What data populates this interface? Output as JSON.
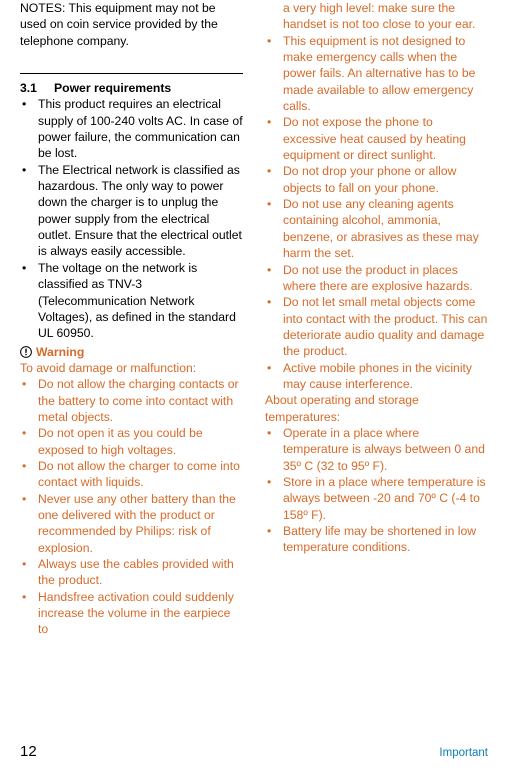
{
  "colors": {
    "warning": "#d66b2a",
    "footer_link": "#0a7fb5",
    "text": "#000000",
    "background": "#ffffff"
  },
  "left": {
    "notes": "NOTES: This equipment may not be used on coin service provided by the telephone company.",
    "section_number": "3.1",
    "section_title": "Power requirements",
    "power_items": [
      "This product requires an electrical supply of 100-240 volts AC. In case of power failure, the communication can be lost.",
      "The Electrical network is classified as hazardous. The only way to power down the charger is to unplug the power supply from the electrical outlet. Ensure that the electrical outlet is always easily accessible.",
      "The voltage on the network is classified as TNV-3 (Telecommunication Network Voltages), as defined in the standard UL 60950."
    ],
    "warning_label": "Warning",
    "warning_intro": "To avoid damage or malfunction:",
    "warning_items": [
      "Do not allow the charging contacts or the battery to come into contact with metal objects.",
      "Do not open it as you could be exposed to high voltages.",
      "Do not allow the charger to come into contact with liquids.",
      "Never use any other battery than the one delivered with the product or recommended by Philips: risk of explosion.",
      "Always use the cables provided with the product.",
      "Handsfree activation could suddenly increase the volume in the earpiece to"
    ]
  },
  "right": {
    "warning_items": [
      "a very high level: make sure the handset is not too close to your ear.",
      "This equipment is not designed to make emergency calls when the power fails. An alternative has to be made available to allow emergency calls.",
      "Do not expose the phone to excessive heat caused by heating equipment or direct sunlight.",
      "Do not drop your phone or allow objects to fall on your phone.",
      "Do not use any cleaning agents containing alcohol, ammonia, benzene, or abrasives as these may harm the set.",
      "Do not use the product in places where there are explosive hazards.",
      "Do not let small metal objects come into contact with the product. This can deteriorate audio quality and damage the product.",
      "Active mobile phones in the vicinity may cause interference."
    ],
    "storage_intro": "About operating and storage temperatures:",
    "storage_items": [
      "Operate in a place where temperature is always between 0 and 35º C (32 to 95º F).",
      "Store in a place where temperature is always between -20 and 70º C (-4 to 158º F).",
      "Battery life may be shortened in low temperature conditions."
    ]
  },
  "footer": {
    "page_number": "12",
    "label": "Important"
  }
}
